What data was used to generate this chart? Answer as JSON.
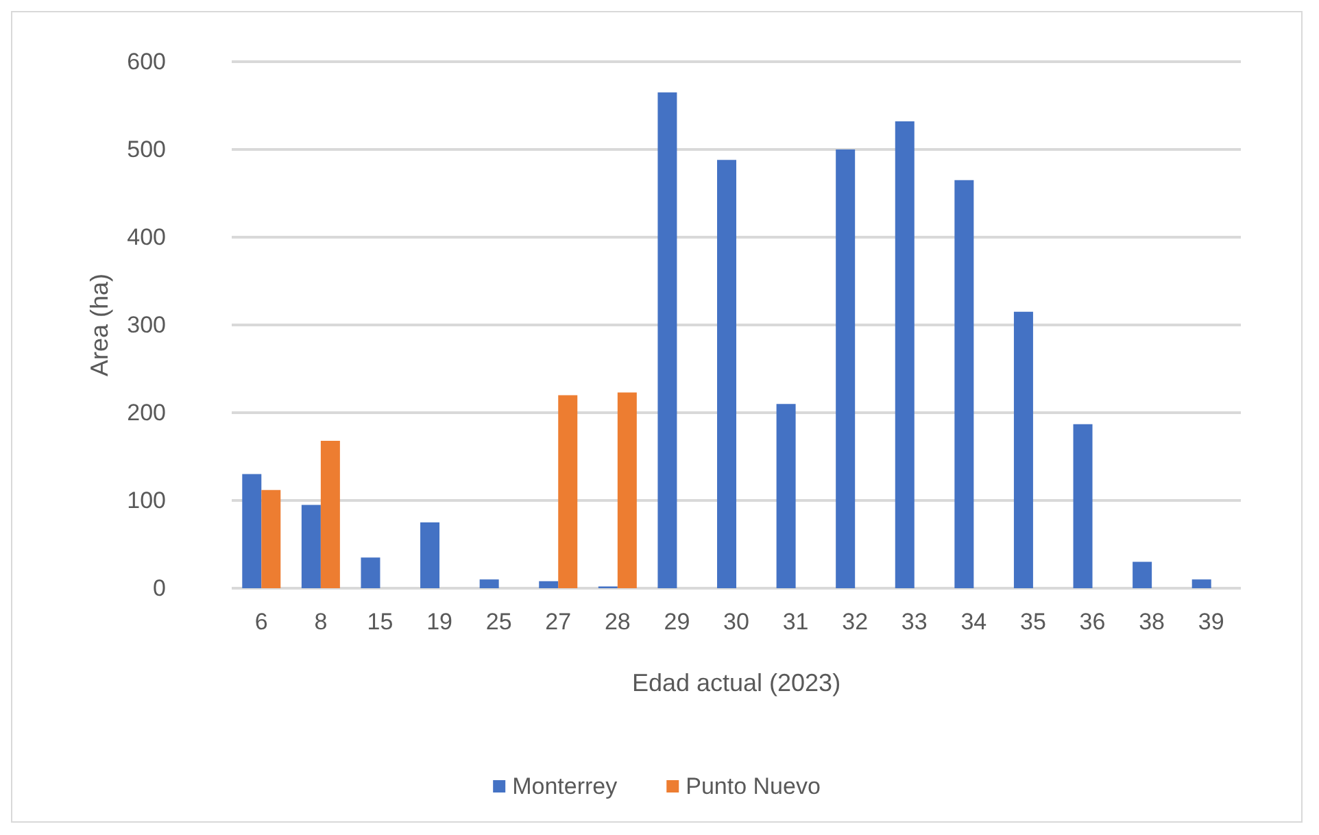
{
  "chart_data": {
    "type": "bar",
    "xlabel": "Edad actual (2023)",
    "ylabel": "Area (ha)",
    "categories": [
      "6",
      "8",
      "15",
      "19",
      "25",
      "27",
      "28",
      "29",
      "30",
      "31",
      "32",
      "33",
      "34",
      "35",
      "36",
      "38",
      "39"
    ],
    "series": [
      {
        "name": "Monterrey",
        "color": "#4472c4",
        "values": [
          130,
          95,
          35,
          75,
          10,
          8,
          2,
          565,
          488,
          210,
          500,
          532,
          465,
          315,
          187,
          30,
          10
        ]
      },
      {
        "name": "Punto Nuevo",
        "color": "#ed7d31",
        "values": [
          112,
          168,
          null,
          null,
          null,
          220,
          223,
          null,
          null,
          null,
          null,
          null,
          null,
          null,
          null,
          null,
          null
        ]
      }
    ],
    "ylim": [
      0,
      600
    ],
    "yticks": [
      0,
      100,
      200,
      300,
      400,
      500,
      600
    ],
    "grid": "y",
    "legend": "bottom"
  }
}
